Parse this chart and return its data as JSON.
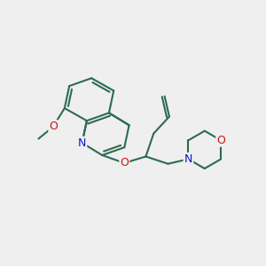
{
  "bg_color": "#efefef",
  "bond_color": "#2d6b50",
  "n_color": "#1111cc",
  "o_color": "#cc1111",
  "lw": 1.5,
  "figsize": [
    3.0,
    3.0
  ],
  "dpi": 100,
  "xlim": [
    0,
    10
  ],
  "ylim": [
    0,
    10
  ]
}
